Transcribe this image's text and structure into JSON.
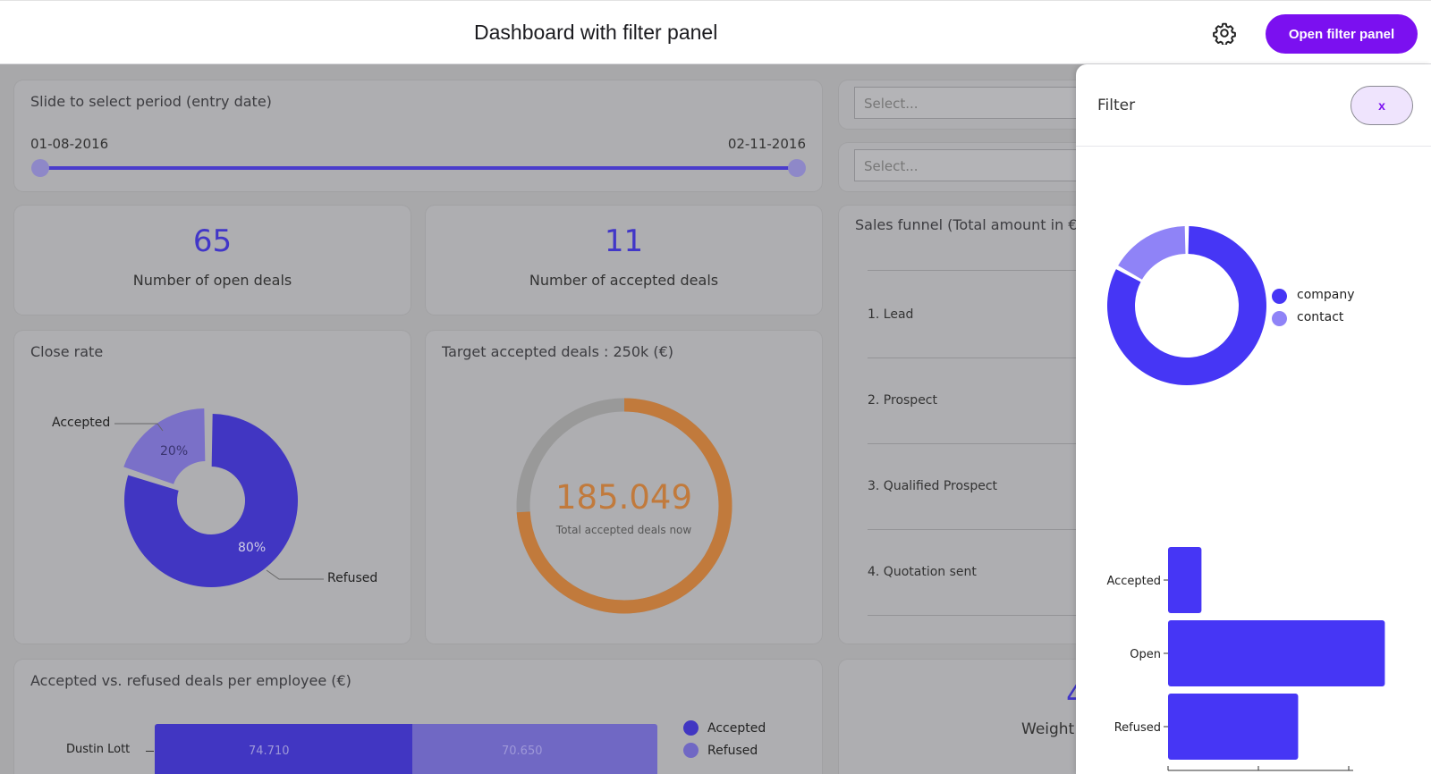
{
  "header": {
    "title": "Dashboard with filter panel",
    "open_filter_label": "Open filter panel",
    "settings_icon": "gear-icon",
    "accent": "#7b10f0"
  },
  "period": {
    "title": "Slide to select period (entry date)",
    "start": "01-08-2016",
    "end": "02-11-2016"
  },
  "kpis": [
    {
      "value": "65",
      "label": "Number of open deals"
    },
    {
      "value": "11",
      "label": "Number of accepted deals"
    }
  ],
  "selects": [
    {
      "placeholder": "Select..."
    },
    {
      "placeholder": "Select..."
    }
  ],
  "close_rate": {
    "title": "Close rate",
    "accepted_label": "Accepted",
    "refused_label": "Refused",
    "accepted_pct": "20%",
    "refused_pct": "80%"
  },
  "target": {
    "title": "Target accepted deals : 250k (€)",
    "value": "185.049",
    "caption": "Total accepted deals now",
    "progress": 0.74
  },
  "funnel": {
    "title": "Sales funnel (Total amount in €)",
    "steps": [
      "1. Lead",
      "2. Prospect",
      "3. Qualified Prospect",
      "4. Quotation sent"
    ]
  },
  "employee_chart": {
    "title": "Accepted vs. refused deals per employee (€)",
    "employee": "Dustin Lott",
    "accepted_value": "74.710",
    "refused_value": "70.650",
    "legend": [
      "Accepted",
      "Refused"
    ]
  },
  "weighted": {
    "partial_label": "Weight",
    "partial_value": "4"
  },
  "filter_panel": {
    "title": "Filter",
    "close_label": "x",
    "donut_legend": [
      "company",
      "contact"
    ],
    "colors": {
      "company": "#4636f5",
      "contact": "#8f83f7"
    }
  },
  "chart_data": [
    {
      "type": "pie",
      "labels": [
        "Accepted",
        "Refused"
      ],
      "values": [
        20,
        80
      ],
      "title": "Close rate"
    },
    {
      "type": "pie",
      "labels": [
        "company",
        "contact"
      ],
      "values": [
        83,
        17
      ]
    },
    {
      "type": "bar",
      "orientation": "horizontal",
      "categories": [
        "Accepted",
        "Open",
        "Refused"
      ],
      "values": [
        185000,
        1200000,
        720000
      ],
      "xlim": [
        0,
        1250000
      ],
      "xticks": [
        "0",
        "500000",
        "1000000"
      ]
    },
    {
      "type": "bar",
      "orientation": "horizontal",
      "stacked": true,
      "categories": [
        "Dustin Lott"
      ],
      "series": [
        {
          "name": "Accepted",
          "values": [
            74710
          ]
        },
        {
          "name": "Refused",
          "values": [
            70650
          ]
        }
      ],
      "title": "Accepted vs. refused deals per employee (€)"
    }
  ]
}
